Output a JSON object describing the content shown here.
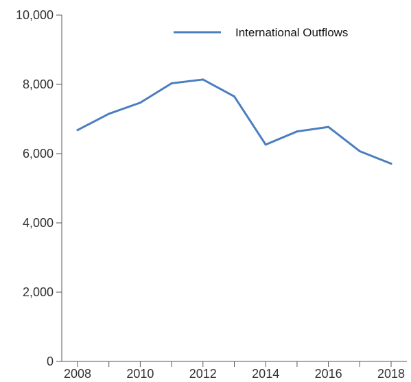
{
  "chart_data": {
    "type": "line",
    "title": "",
    "xlabel": "",
    "ylabel": "",
    "x": [
      2008,
      2009,
      2010,
      2011,
      2012,
      2013,
      2014,
      2015,
      2016,
      2017,
      2018
    ],
    "series": [
      {
        "name": "International Outflows",
        "color": "#4a7ebf",
        "values": [
          6680,
          7150,
          7470,
          8030,
          8140,
          7650,
          6260,
          6640,
          6770,
          6070,
          5710
        ]
      }
    ],
    "ylim": [
      0,
      10000
    ],
    "y_ticks": [
      "0",
      "2,000",
      "4,000",
      "6,000",
      "8,000",
      "10,000"
    ],
    "x_ticks": [
      "2008",
      "2010",
      "2012",
      "2014",
      "2016",
      "2018"
    ],
    "grid": false,
    "legend_position": "top-right"
  }
}
